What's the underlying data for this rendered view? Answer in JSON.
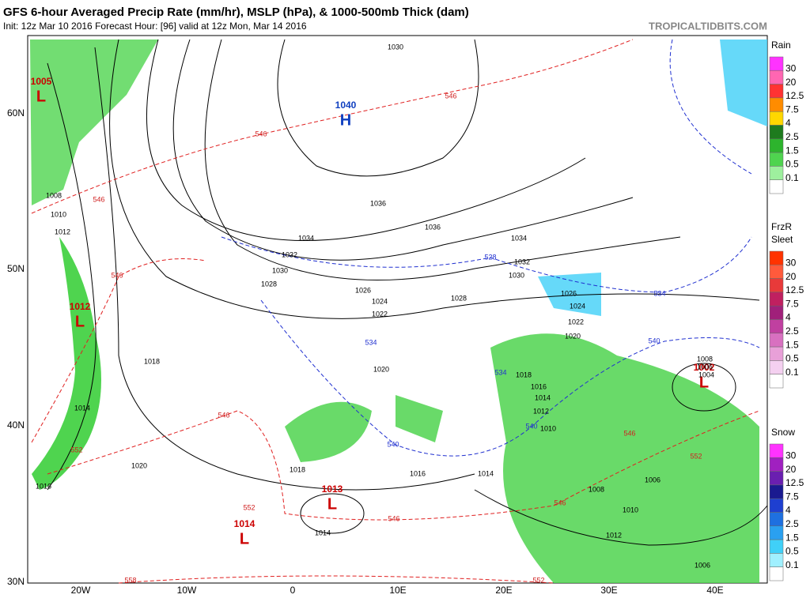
{
  "header": {
    "title": "GFS 6-hour Averaged Precip Rate (mm/hr), MSLP (hPa), & 1000-500mb Thick (dam)",
    "subtitle": "Init: 12z Mar 10 2016   Forecast Hour: [96]   valid at 12z Mon, Mar 14 2016",
    "site": "TROPICALTIDBITS.COM"
  },
  "axes": {
    "lat_labels": [
      "60N",
      "50N",
      "40N",
      "30N"
    ],
    "lon_labels": [
      "20W",
      "10W",
      "0",
      "10E",
      "20E",
      "30E",
      "40E"
    ]
  },
  "centers": [
    {
      "symbol": "L",
      "value": "1005"
    },
    {
      "symbol": "H",
      "value": "1040"
    },
    {
      "symbol": "L",
      "value": "1012"
    },
    {
      "symbol": "L",
      "value": "1013"
    },
    {
      "symbol": "L",
      "value": "1014"
    },
    {
      "symbol": "L",
      "value": "1002"
    }
  ],
  "isobar_labels": [
    "1030",
    "1008",
    "1010",
    "1012",
    "1036",
    "1034",
    "1032",
    "1030",
    "1028",
    "1026",
    "1024",
    "1022",
    "1020",
    "1018",
    "1014",
    "1016",
    "1020",
    "1018",
    "1016",
    "1014",
    "1014",
    "1012",
    "1010",
    "1008",
    "1006",
    "1006",
    "1034",
    "1032",
    "1030",
    "1028",
    "1026",
    "1024",
    "1022",
    "1020",
    "1018",
    "1016",
    "1014",
    "1012",
    "1010",
    "1036",
    "1008",
    "1006",
    "1004"
  ],
  "thickness_labels_red": [
    "546",
    "546",
    "546",
    "546",
    "552",
    "546",
    "552",
    "546",
    "546",
    "552",
    "546",
    "552",
    "558"
  ],
  "thickness_labels_blue": [
    "528",
    "534",
    "534",
    "540",
    "540",
    "534",
    "540"
  ],
  "legends": [
    {
      "title": "Rain",
      "ticks": [
        "30",
        "20",
        "12.5",
        "7.5",
        "4",
        "2.5",
        "1.5",
        "0.5",
        "0.1"
      ],
      "colors": [
        "#ff33ff",
        "#ff66b2",
        "#ff3333",
        "#ff8c00",
        "#ffd700",
        "#1e7b1e",
        "#2db42d",
        "#4fd44f",
        "#9ef09e",
        "#ffffff"
      ]
    },
    {
      "title": "FrzR",
      "title2": "Sleet",
      "ticks": [
        "30",
        "20",
        "12.5",
        "7.5",
        "4",
        "2.5",
        "1.5",
        "0.5",
        "0.1"
      ],
      "colors": [
        "#ff3300",
        "#ff5a3c",
        "#e83a3a",
        "#c02060",
        "#a0207a",
        "#c040a0",
        "#d870c0",
        "#e8a0d8",
        "#f4d0f0",
        "#ffffff"
      ]
    },
    {
      "title": "Snow",
      "ticks": [
        "30",
        "20",
        "12.5",
        "7.5",
        "4",
        "2.5",
        "1.5",
        "0.5",
        "0.1"
      ],
      "colors": [
        "#ff33ff",
        "#a020c0",
        "#6a1fb0",
        "#1a1a90",
        "#1e3fd0",
        "#1e70e0",
        "#2aa0f0",
        "#40d0f8",
        "#a0f0ff",
        "#ffffff"
      ]
    }
  ]
}
